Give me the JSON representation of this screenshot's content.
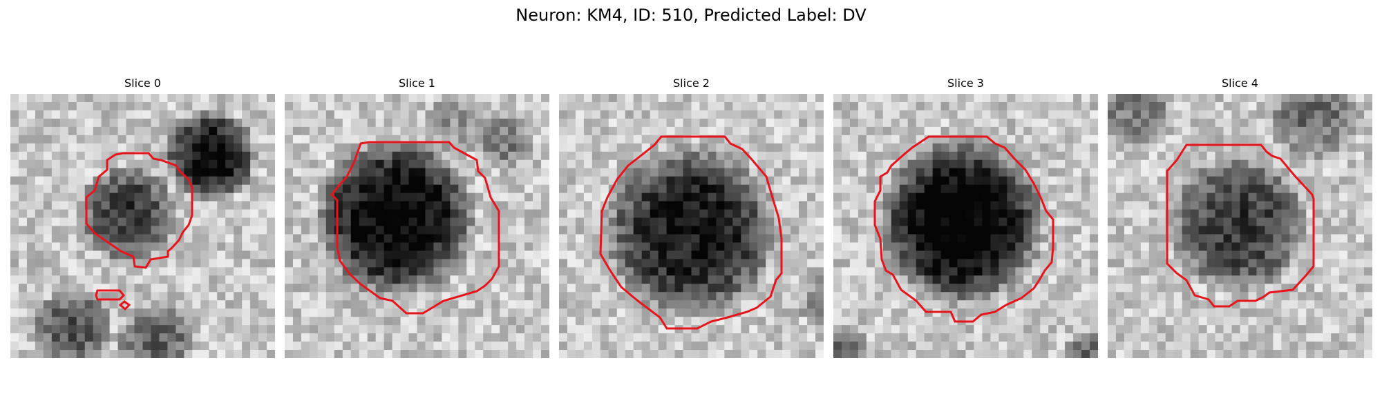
{
  "figure": {
    "title": "Neuron: KM4, ID: 510, Predicted Label: DV"
  },
  "panels": [
    {
      "title": "Slice 0"
    },
    {
      "title": "Slice 1"
    },
    {
      "title": "Slice 2"
    },
    {
      "title": "Slice 3"
    },
    {
      "title": "Slice 4"
    }
  ],
  "style": {
    "contour_color": "#e8141c",
    "image_colormap": "grayscale"
  }
}
